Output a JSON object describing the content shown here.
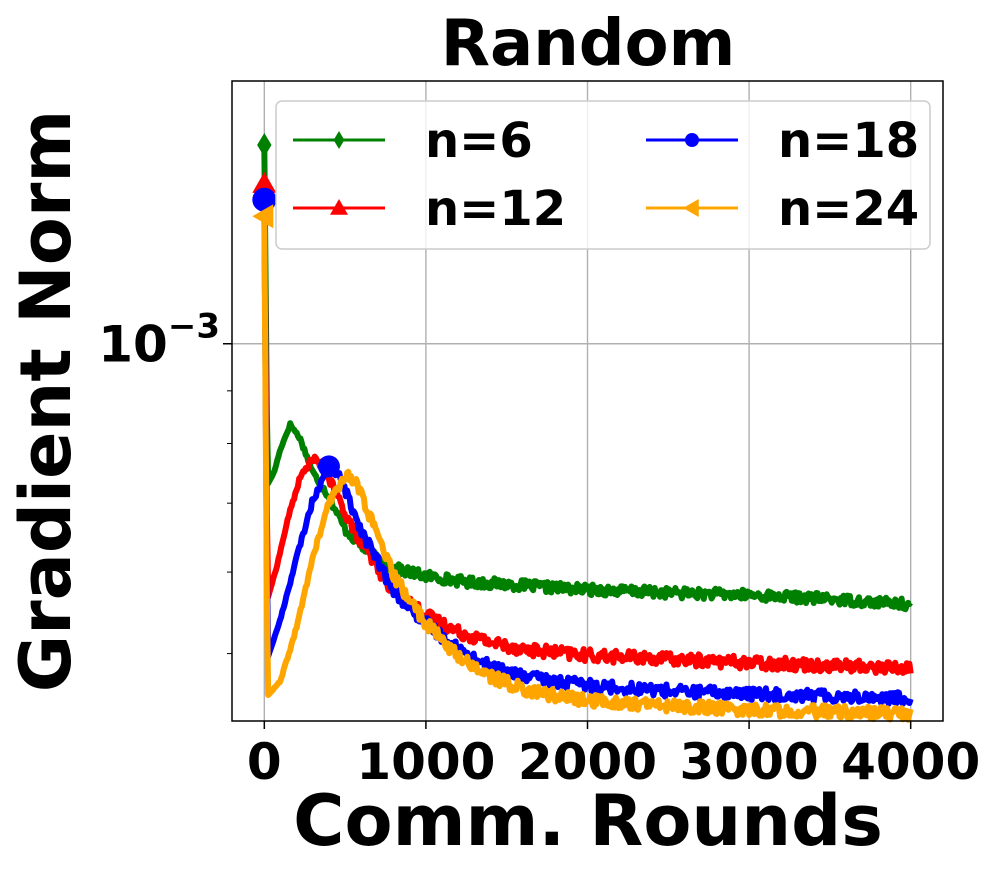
{
  "chart_data": {
    "type": "line",
    "title": "Random",
    "xlabel": "Comm. Rounds",
    "ylabel": "Gradient Norm",
    "y_scale": "log",
    "xlim": [
      -200,
      4200
    ],
    "ylim": [
      0.00043,
      0.0018
    ],
    "x_ticks": [
      0,
      1000,
      2000,
      3000,
      4000
    ],
    "x_tick_labels": [
      "0",
      "1000",
      "2000",
      "3000",
      "4000"
    ],
    "y_major_tick": {
      "value": 0.001,
      "base": "10",
      "exponent": "−3"
    },
    "grid": true,
    "legend": {
      "placement": "top-right",
      "columns": 2
    },
    "series": [
      {
        "name": "n=6",
        "color": "#008000",
        "marker": "thin_diamond",
        "x": [
          0,
          20,
          60,
          100,
          160,
          220,
          300,
          400,
          500,
          650,
          800,
          1000,
          1250,
          1500,
          1750,
          2000,
          2500,
          3000,
          3500,
          4000
        ],
        "y": [
          0.00156,
          0.00073,
          0.00075,
          0.00079,
          0.000835,
          0.00081,
          0.00075,
          0.00071,
          0.00066,
          0.000625,
          0.000605,
          0.000595,
          0.000587,
          0.000584,
          0.00058,
          0.000577,
          0.000573,
          0.00057,
          0.000565,
          0.000558
        ]
      },
      {
        "name": "n=12",
        "color": "#ff0000",
        "marker": "triangle_up",
        "x": [
          0,
          20,
          80,
          150,
          220,
          300,
          360,
          400,
          500,
          600,
          700,
          800,
          1000,
          1200,
          1400,
          1600,
          2000,
          2500,
          3000,
          3500,
          4000
        ],
        "y": [
          0.00143,
          0.000565,
          0.00061,
          0.00068,
          0.00074,
          0.000775,
          0.00076,
          0.00074,
          0.000685,
          0.00064,
          0.000605,
          0.000575,
          0.000545,
          0.000525,
          0.000513,
          0.000505,
          0.000498,
          0.000494,
          0.00049,
          0.000487,
          0.000484
        ]
      },
      {
        "name": "n=18",
        "color": "#0000ff",
        "marker": "circle",
        "x": [
          0,
          20,
          100,
          200,
          300,
          400,
          450,
          500,
          600,
          700,
          800,
          1000,
          1200,
          1400,
          1600,
          1800,
          2000,
          2500,
          3000,
          3500,
          4000
        ],
        "y": [
          0.00138,
          0.000495,
          0.00054,
          0.00062,
          0.000705,
          0.00076,
          0.00075,
          0.00072,
          0.00066,
          0.000615,
          0.000575,
          0.000535,
          0.000505,
          0.000485,
          0.000475,
          0.00047,
          0.000466,
          0.00046,
          0.000457,
          0.000455,
          0.000452
        ]
      },
      {
        "name": "n=24",
        "color": "#ffa500",
        "marker": "triangle_left",
        "x": [
          0,
          20,
          100,
          200,
          300,
          400,
          500,
          550,
          600,
          700,
          800,
          1000,
          1200,
          1400,
          1600,
          1800,
          2000,
          2500,
          3000,
          3500,
          4000
        ],
        "y": [
          0.00133,
          0.000455,
          0.00047,
          0.00053,
          0.00062,
          0.0007,
          0.000745,
          0.00074,
          0.000715,
          0.00065,
          0.000595,
          0.000535,
          0.000497,
          0.000475,
          0.000462,
          0.000455,
          0.00045,
          0.000445,
          0.000441,
          0.000439,
          0.000437
        ]
      }
    ]
  }
}
